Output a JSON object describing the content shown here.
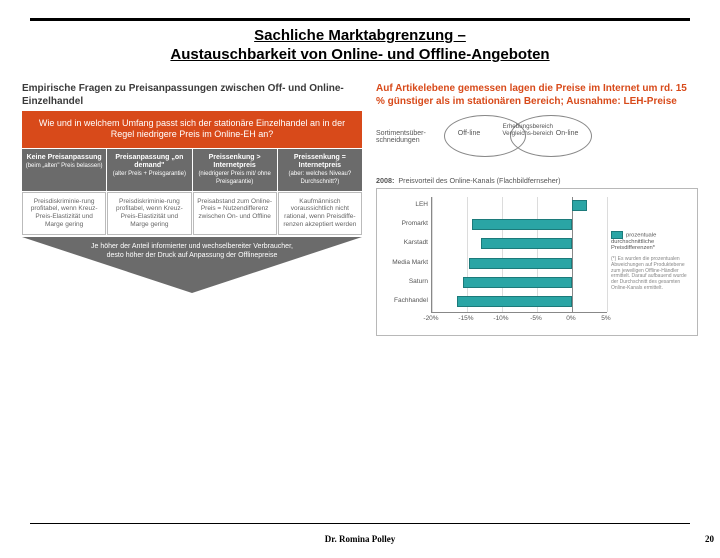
{
  "title_line1": "Sachliche Marktabgrenzung –",
  "title_line2": "Austauschbarkeit von Online- und Offline-Angeboten",
  "left": {
    "heading": "Empirische Fragen zu Preisanpassungen zwischen Off- und Online-Einzelhandel",
    "orange": "Wie und in welchem Umfang passt sich der stationäre Einzelhandel an in der Regel niedrigere Preis im Online-EH an?",
    "gray": [
      {
        "t": "Keine Preisanpassung",
        "s": "(beim „alten\" Preis belassen)"
      },
      {
        "t": "Preisanpassung „on demand\"",
        "s": "(alter Preis + Preisgarantie)"
      },
      {
        "t": "Preissenkung > Internetpreis",
        "s": "(niedrigerer Preis mit/ ohne Preisgarantie)"
      },
      {
        "t": "Preissenkung = Internetpreis",
        "s": "(aber: welches Niveau? Durchschnitt?)"
      }
    ],
    "white": [
      "Preisdiskriminie-rung profitabel, wenn Kreuz-Preis-Elastizität und Marge gering",
      "Preisdiskriminie-rung profitabel, wenn Kreuz-Preis-Elastizität und Marge gering",
      "Preisabstand zum Online-Preis = Nutzendifferenz zwischen On- und Offline",
      "Kaufmännisch voraussichtlich nicht rational, wenn Preisdiffe-renzen akzeptiert werden"
    ],
    "tri": "Je höher der Anteil informierter und wechselbereiter Verbraucher, desto höher der Druck auf Anpassung der Offlinepreise"
  },
  "right": {
    "heading": "Auf Artikelebene gemessen lagen die Preise im Internet um rd. 15 % günstiger als im stationären Bereich; Ausnahme: LEH-Preise",
    "venn_label": "Sortimentsüber-\nschneidungen",
    "venn": {
      "left": "Off-line",
      "center": "Erhebungsbereich Vergleichs-bereich",
      "right": "On-line"
    },
    "chart": {
      "year": "2008:",
      "title": "Preisvorteil des Online-Kanals (Flachbildfernseher)",
      "categories": [
        "LEH",
        "Promarkt",
        "Karstadt",
        "Media Markt",
        "Saturn",
        "Fachhandel"
      ],
      "values": [
        2.1,
        -14.3,
        -13.0,
        -14.7,
        -15.6,
        -16.4
      ],
      "xmin": -20,
      "xmax": 5,
      "xtick_step": 5,
      "bar_color": "#2aa5a5",
      "legend": "prozentuale durchschnittliche Preisdifferenzen*",
      "note": "(*) Es wurden die prozentualen Abweichungen auf Produktebene zum jeweiligen Offline-Händler ermittelt. Darauf aufbauend wurde der Durchschnitt des gesamten Online-Kanals ermittelt."
    }
  },
  "footer": {
    "author": "Dr. Romina Polley",
    "page": "20"
  }
}
